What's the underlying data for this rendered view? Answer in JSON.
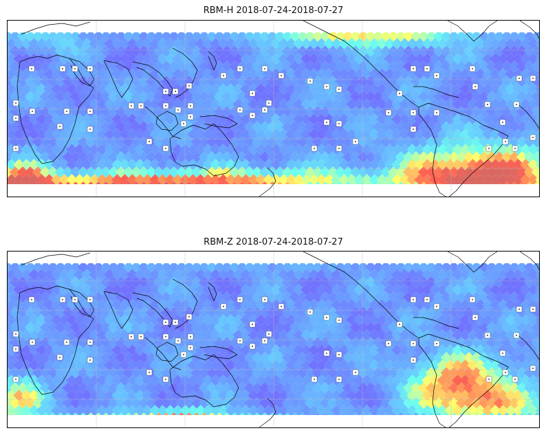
{
  "panels": [
    {
      "id": "h",
      "title": "RBM-H 2018-07-24-2018-07-27"
    },
    {
      "id": "z",
      "title": "RBM-Z 2018-07-24-2018-07-27"
    }
  ],
  "colors": {
    "low": "#6a6cff",
    "mid_low": "#5fc8ff",
    "mid": "#66ffee",
    "mid_high": "#ffff66",
    "high": "#ff5a4a",
    "coast": "#000000",
    "grid": "#bbbbbb"
  },
  "grid": {
    "visible": true
  },
  "station_marker": "white-dotted-square"
}
